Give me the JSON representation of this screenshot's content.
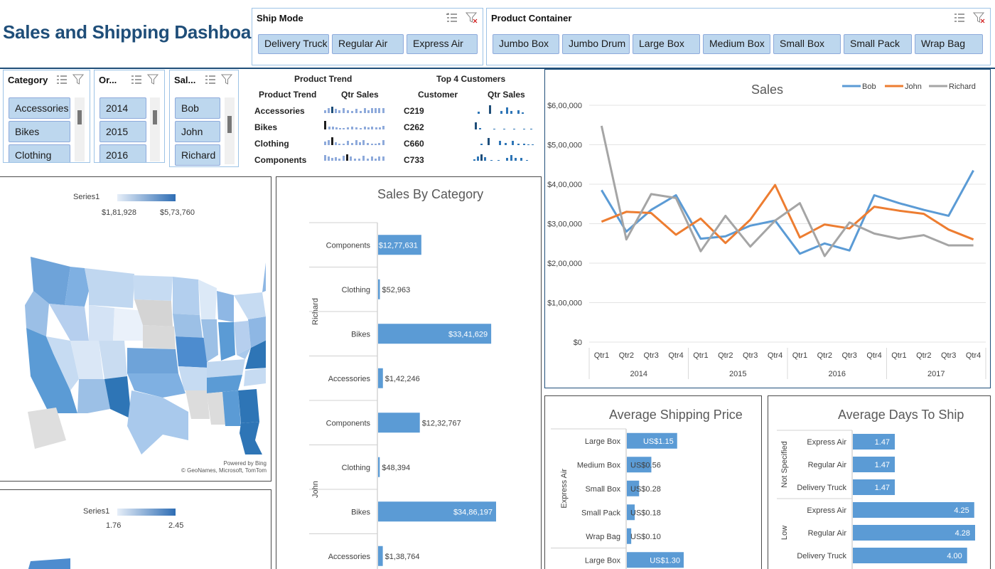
{
  "title": "Sales and Shipping Dashboard",
  "colors": {
    "title": "#1f4e79",
    "slicer_button": "#bdd7ee",
    "bar": "#5b9bd5",
    "bob": "#5b9bd5",
    "john": "#ed7d31",
    "richard": "#a5a5a5"
  },
  "ship_mode": {
    "label": "Ship Mode",
    "options": [
      "Delivery Truck",
      "Regular Air",
      "Express Air"
    ]
  },
  "product_container": {
    "label": "Product Container",
    "options": [
      "Jumbo Box",
      "Jumbo Drum",
      "Large Box",
      "Medium Box",
      "Small Box",
      "Small Pack",
      "Wrap Bag"
    ]
  },
  "category_slicer": {
    "label": "Category",
    "options": [
      "Accessories",
      "Bikes",
      "Clothing"
    ]
  },
  "order_slicer": {
    "label": "Or...",
    "options": [
      "2014",
      "2015",
      "2016"
    ]
  },
  "sales_slicer": {
    "label": "Sal...",
    "options": [
      "Bob",
      "John",
      "Richard"
    ]
  },
  "product_trend": {
    "title": "Product Trend",
    "col1": "Product Trend",
    "col2": "Qtr Sales",
    "rows": [
      "Accessories",
      "Bikes",
      "Clothing",
      "Components"
    ]
  },
  "top_customers": {
    "title": "Top 4 Customers",
    "col1": "Customer",
    "col2": "Qtr Sales",
    "rows": [
      "C219",
      "C262",
      "C660",
      "C733"
    ]
  },
  "map1": {
    "legend_series": "Series1",
    "min": "$1,81,928",
    "max": "$5,73,760",
    "credit1": "Powered by Bing",
    "credit2": "© GeoNames, Microsoft, TomTom"
  },
  "map2": {
    "legend_series": "Series1",
    "min": "1.76",
    "max": "2.45"
  },
  "sales_by_category": {
    "title": "Sales By Category",
    "groups": [
      {
        "name": "Richard",
        "items": [
          {
            "cat": "Components",
            "label": "$12,77,631",
            "value": 1277631
          },
          {
            "cat": "Clothing",
            "label": "$52,963",
            "value": 52963
          },
          {
            "cat": "Bikes",
            "label": "$33,41,629",
            "value": 3341629
          },
          {
            "cat": "Accessories",
            "label": "$1,42,246",
            "value": 142246
          }
        ]
      },
      {
        "name": "John",
        "items": [
          {
            "cat": "Components",
            "label": "$12,32,767",
            "value": 1232767
          },
          {
            "cat": "Clothing",
            "label": "$48,394",
            "value": 48394
          },
          {
            "cat": "Bikes",
            "label": "$34,86,197",
            "value": 3486197
          },
          {
            "cat": "Accessories",
            "label": "$1,38,764",
            "value": 138764
          }
        ]
      }
    ]
  },
  "chart_data": {
    "type": "line",
    "title": "Sales",
    "y_ticks": [
      "$0",
      "$1,00,000",
      "$2,00,000",
      "$3,00,000",
      "$4,00,000",
      "$5,00,000",
      "$6,00,000"
    ],
    "ylim": [
      0,
      600000
    ],
    "quarters": [
      "Qtr1",
      "Qtr2",
      "Qtr3",
      "Qtr4",
      "Qtr1",
      "Qtr2",
      "Qtr3",
      "Qtr4",
      "Qtr1",
      "Qtr2",
      "Qtr3",
      "Qtr4",
      "Qtr1",
      "Qtr2",
      "Qtr3",
      "Qtr4"
    ],
    "years": [
      "2014",
      "2015",
      "2016",
      "2017"
    ],
    "legend_position": "top-right",
    "series": [
      {
        "name": "Bob",
        "color": "#5b9bd5",
        "values": [
          385000,
          280000,
          335000,
          372000,
          262000,
          268000,
          295000,
          308000,
          224000,
          250000,
          232000,
          372000,
          352000,
          335000,
          320000,
          435000
        ]
      },
      {
        "name": "John",
        "color": "#ed7d31",
        "values": [
          305000,
          330000,
          327000,
          272000,
          313000,
          251000,
          310000,
          398000,
          265000,
          298000,
          288000,
          343000,
          333000,
          325000,
          285000,
          260000
        ]
      },
      {
        "name": "Richard",
        "color": "#a5a5a5",
        "values": [
          548000,
          260000,
          375000,
          365000,
          230000,
          320000,
          242000,
          308000,
          352000,
          218000,
          303000,
          275000,
          262000,
          271000,
          245000,
          245000
        ]
      }
    ]
  },
  "avg_shipping_price": {
    "title": "Average Shipping Price",
    "group": "Express Air",
    "items": [
      {
        "cat": "Large Box",
        "label": "US$1.15",
        "value": 1.15
      },
      {
        "cat": "Medium Box",
        "label": "US$0.56",
        "value": 0.56
      },
      {
        "cat": "Small Box",
        "label": "US$0.28",
        "value": 0.28
      },
      {
        "cat": "Small Pack",
        "label": "US$0.18",
        "value": 0.18
      },
      {
        "cat": "Wrap Bag",
        "label": "US$0.10",
        "value": 0.1
      },
      {
        "cat": "Large Box",
        "label": "US$1.30",
        "value": 1.3
      }
    ]
  },
  "avg_days_to_ship": {
    "title": "Average Days To Ship",
    "groups": [
      {
        "name": "Not Specified",
        "items": [
          {
            "cat": "Express Air",
            "label": "1.47",
            "value": 1.47
          },
          {
            "cat": "Regular Air",
            "label": "1.47",
            "value": 1.47
          },
          {
            "cat": "Delivery Truck",
            "label": "1.47",
            "value": 1.47
          }
        ]
      },
      {
        "name": "Low",
        "items": [
          {
            "cat": "Express Air",
            "label": "4.25",
            "value": 4.25
          },
          {
            "cat": "Regular Air",
            "label": "4.28",
            "value": 4.28
          },
          {
            "cat": "Delivery Truck",
            "label": "4.00",
            "value": 4.0
          }
        ]
      }
    ]
  }
}
